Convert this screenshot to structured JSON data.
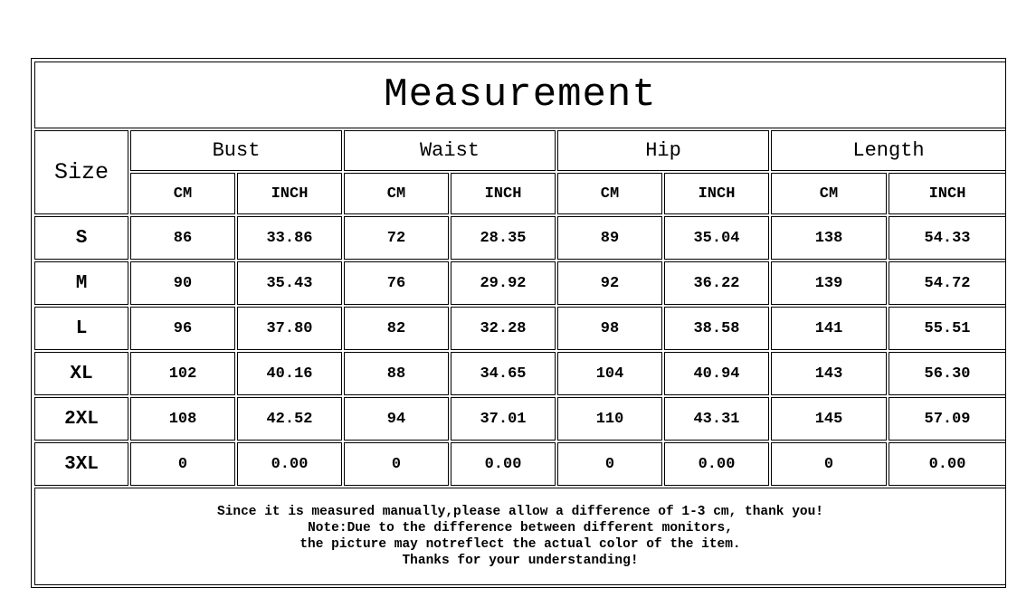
{
  "title": "Measurement",
  "size_label": "Size",
  "groups": [
    "Bust",
    "Waist",
    "Hip",
    "Length"
  ],
  "units": [
    "CM",
    "INCH"
  ],
  "rows": [
    {
      "size": "S",
      "values": [
        "86",
        "33.86",
        "72",
        "28.35",
        "89",
        "35.04",
        "138",
        "54.33"
      ]
    },
    {
      "size": "M",
      "values": [
        "90",
        "35.43",
        "76",
        "29.92",
        "92",
        "36.22",
        "139",
        "54.72"
      ]
    },
    {
      "size": "L",
      "values": [
        "96",
        "37.80",
        "82",
        "32.28",
        "98",
        "38.58",
        "141",
        "55.51"
      ]
    },
    {
      "size": "XL",
      "values": [
        "102",
        "40.16",
        "88",
        "34.65",
        "104",
        "40.94",
        "143",
        "56.30"
      ]
    },
    {
      "size": "2XL",
      "values": [
        "108",
        "42.52",
        "94",
        "37.01",
        "110",
        "43.31",
        "145",
        "57.09"
      ]
    },
    {
      "size": "3XL",
      "values": [
        "0",
        "0.00",
        "0",
        "0.00",
        "0",
        "0.00",
        "0",
        "0.00"
      ]
    }
  ],
  "notes": [
    "Since it is measured manually,please allow a difference of 1-3 cm, thank you!",
    "Note:Due to the difference between different monitors,",
    "the picture may notreflect the actual color of the item.",
    "Thanks for your understanding!"
  ]
}
